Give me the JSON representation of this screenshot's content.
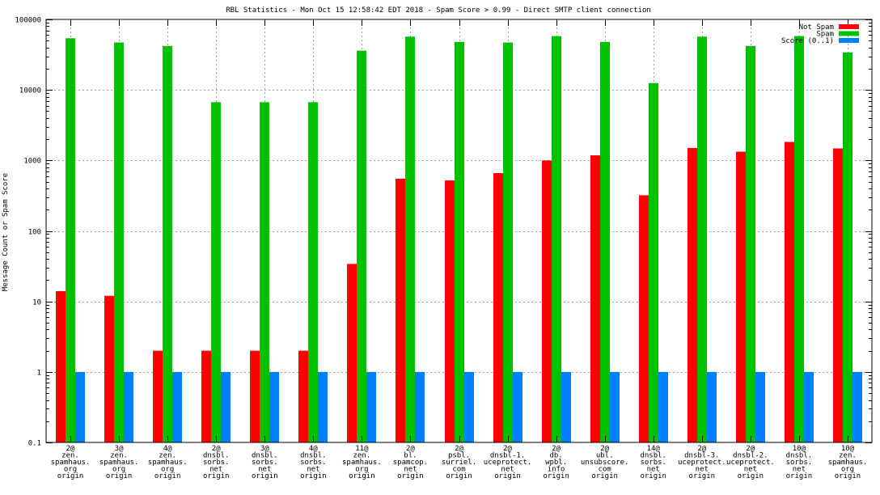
{
  "chart_data": {
    "type": "bar",
    "title": "RBL Statistics - Mon Oct 15 12:58:42 EDT 2018 - Spam Score > 0.99 - Direct SMTP client connection",
    "ylabel": "Message Count or Spam Score",
    "xlabel": "",
    "yscale": "log",
    "ylim": [
      0.1,
      100000
    ],
    "yticks": [
      "0.1",
      "1",
      "10",
      "100",
      "1000",
      "10000",
      "100000"
    ],
    "grid": true,
    "legend_position": "top-right",
    "categories": [
      [
        "2@",
        "zen.",
        "spamhaus.",
        "org",
        "origin"
      ],
      [
        "3@",
        "zen.",
        "spamhaus.",
        "org",
        "origin"
      ],
      [
        "4@",
        "zen.",
        "spamhaus.",
        "org",
        "origin"
      ],
      [
        "2@",
        "dnsbl.",
        "sorbs.",
        "net",
        "origin"
      ],
      [
        "3@",
        "dnsbl.",
        "sorbs.",
        "net",
        "origin"
      ],
      [
        "4@",
        "dnsbl.",
        "sorbs.",
        "net",
        "origin"
      ],
      [
        "11@",
        "zen.",
        "spamhaus.",
        "org",
        "origin"
      ],
      [
        "2@",
        "bl.",
        "spamcop.",
        "net",
        "origin"
      ],
      [
        "2@",
        "psbl.",
        "surriel.",
        "com",
        "origin"
      ],
      [
        "2@",
        "dnsbl-1.",
        "uceprotect.",
        "net",
        "origin"
      ],
      [
        "2@",
        "db.",
        "wpbl.",
        "info",
        "origin"
      ],
      [
        "2@",
        "ubl.",
        "unsubscore.",
        "com",
        "origin"
      ],
      [
        "14@",
        "dnsbl.",
        "sorbs.",
        "net",
        "origin"
      ],
      [
        "2@",
        "dnsbl-3.",
        "uceprotect.",
        "net",
        "origin"
      ],
      [
        "2@",
        "dnsbl-2.",
        "uceprotect.",
        "net",
        "origin"
      ],
      [
        "10@",
        "dnsbl.",
        "sorbs.",
        "net",
        "origin"
      ],
      [
        "10@",
        "zen.",
        "spamhaus.",
        "org",
        "origin"
      ]
    ],
    "series": [
      {
        "name": "Not Spam",
        "color": "#ff0000",
        "values": [
          14,
          12,
          2,
          2,
          2,
          2,
          34,
          550,
          520,
          660,
          1000,
          1180,
          320,
          1500,
          1330,
          1830,
          1480
        ]
      },
      {
        "name": "Spam",
        "color": "#00c000",
        "values": [
          54000,
          47000,
          42000,
          6700,
          6700,
          6700,
          36000,
          57000,
          48000,
          47000,
          58000,
          48000,
          12500,
          57000,
          42000,
          58000,
          34000
        ]
      },
      {
        "name": "Score (0..1)",
        "color": "#0080ff",
        "values": [
          1,
          1,
          1,
          1,
          1,
          1,
          1,
          1,
          1,
          1,
          1,
          1,
          1,
          1,
          1,
          1,
          1
        ]
      }
    ]
  }
}
